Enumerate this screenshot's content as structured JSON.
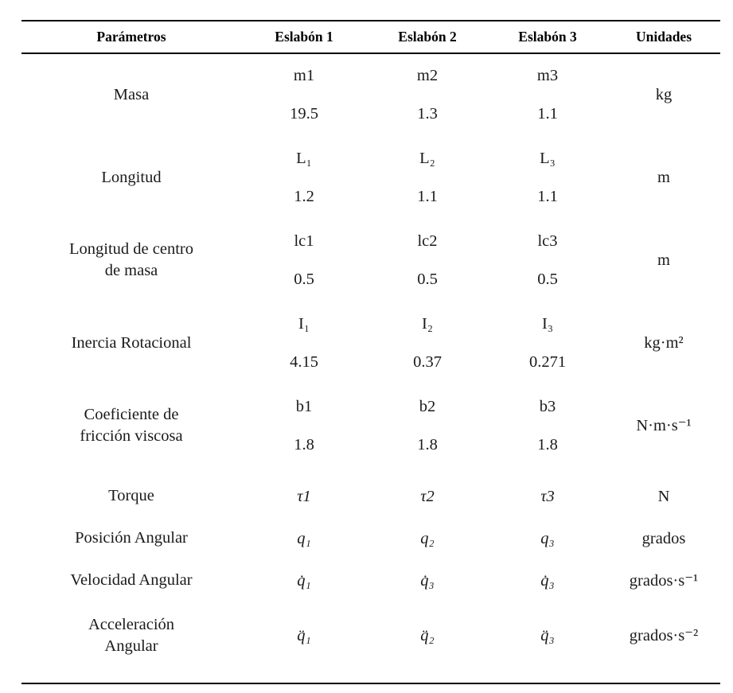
{
  "table": {
    "headers": [
      "Parámetros",
      "Eslabón 1",
      "Eslabón 2",
      "Eslabón 3",
      "Unidades"
    ],
    "rows": [
      {
        "param_lines": [
          "Masa"
        ],
        "symbols": [
          "m1",
          "m2",
          "m3"
        ],
        "values": [
          "19.5",
          "1.3",
          "1.1"
        ],
        "units": "kg",
        "italic_symbols": false
      },
      {
        "param_lines": [
          "Longitud"
        ],
        "symbols": [
          "L₁",
          "L₂",
          "L₃"
        ],
        "values": [
          "1.2",
          "1.1",
          "1.1"
        ],
        "units": "m",
        "italic_symbols": false
      },
      {
        "param_lines": [
          "Longitud de centro",
          "de masa"
        ],
        "symbols": [
          "lc1",
          "lc2",
          "lc3"
        ],
        "values": [
          "0.5",
          "0.5",
          "0.5"
        ],
        "units": "m",
        "italic_symbols": false
      },
      {
        "param_lines": [
          "Inercia Rotacional"
        ],
        "symbols": [
          "I₁",
          "I₂",
          "I₃"
        ],
        "values": [
          "4.15",
          "0.37",
          "0.271"
        ],
        "units": "kg·m²",
        "italic_symbols": false
      },
      {
        "param_lines": [
          "Coeficiente de",
          "fricción viscosa"
        ],
        "symbols": [
          "b1",
          "b2",
          "b3"
        ],
        "values": [
          "1.8",
          "1.8",
          "1.8"
        ],
        "units": "N·m·s⁻¹",
        "italic_symbols": false
      },
      {
        "param_lines": [
          "Torque"
        ],
        "symbols": [
          "τ1",
          "τ2",
          "τ3"
        ],
        "values": null,
        "units": "N",
        "italic_symbols": true
      },
      {
        "param_lines": [
          "Posición Angular"
        ],
        "symbols": [
          "q₁",
          "q₂",
          "q₃"
        ],
        "values": null,
        "units": "grados",
        "italic_symbols": true
      },
      {
        "param_lines": [
          "Velocidad Angular"
        ],
        "symbols": [
          "q̇₁",
          "q̇₃",
          "q̇₃"
        ],
        "values": null,
        "units": "grados·s⁻¹",
        "italic_symbols": true
      },
      {
        "param_lines": [
          "Acceleración",
          "Angular"
        ],
        "symbols": [
          "q̈₁",
          "q̈₂",
          "q̈₃"
        ],
        "values": null,
        "units": "grados·s⁻²",
        "italic_symbols": true
      }
    ]
  }
}
